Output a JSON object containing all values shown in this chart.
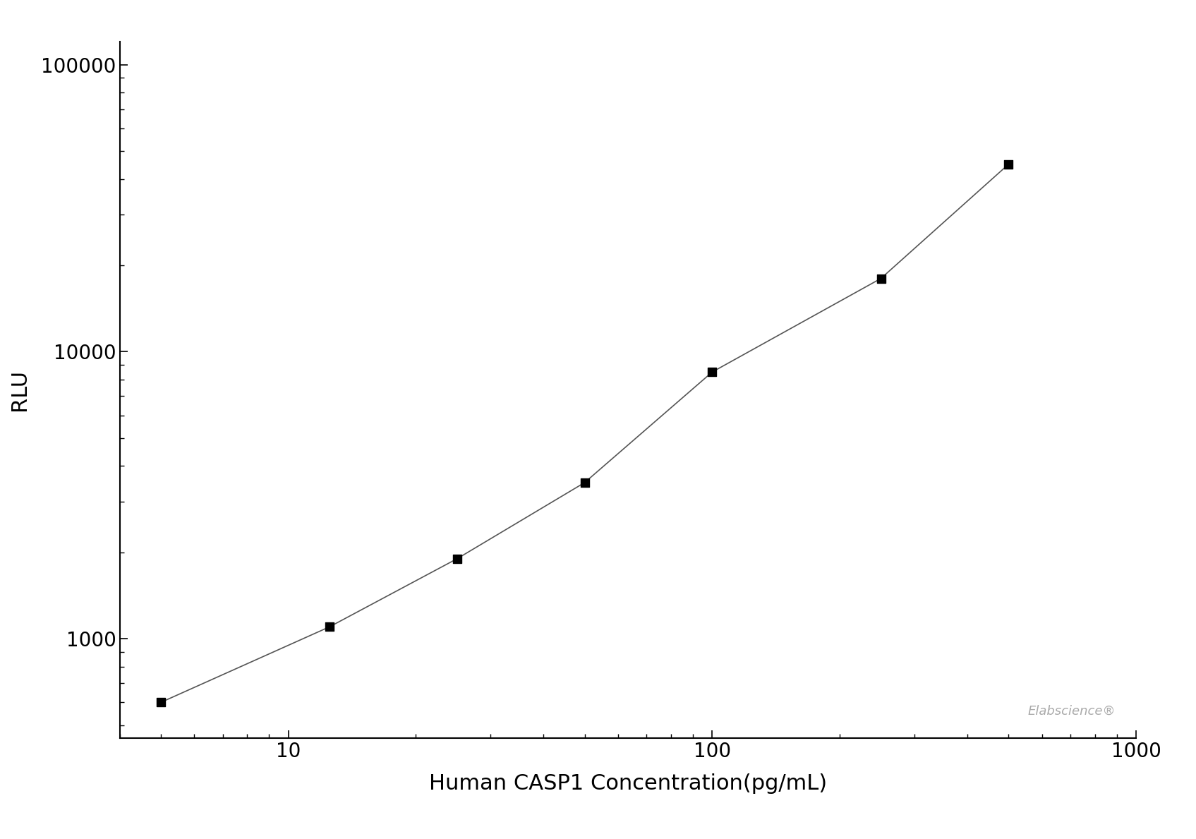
{
  "x": [
    5,
    12.5,
    25,
    50,
    100,
    250,
    500
  ],
  "y": [
    600,
    1100,
    1900,
    3500,
    8500,
    18000,
    45000
  ],
  "xlabel": "Human CASP1 Concentration(pg/mL)",
  "ylabel": "RLU",
  "xlim": [
    4,
    1000
  ],
  "ylim": [
    450,
    120000
  ],
  "line_color": "#555555",
  "marker_color": "#000000",
  "marker": "s",
  "marker_size": 9,
  "line_width": 1.2,
  "xlabel_fontsize": 22,
  "ylabel_fontsize": 22,
  "tick_fontsize": 20,
  "background_color": "#ffffff",
  "watermark": "Elabscience®",
  "watermark_fontsize": 13,
  "watermark_color": "#aaaaaa"
}
